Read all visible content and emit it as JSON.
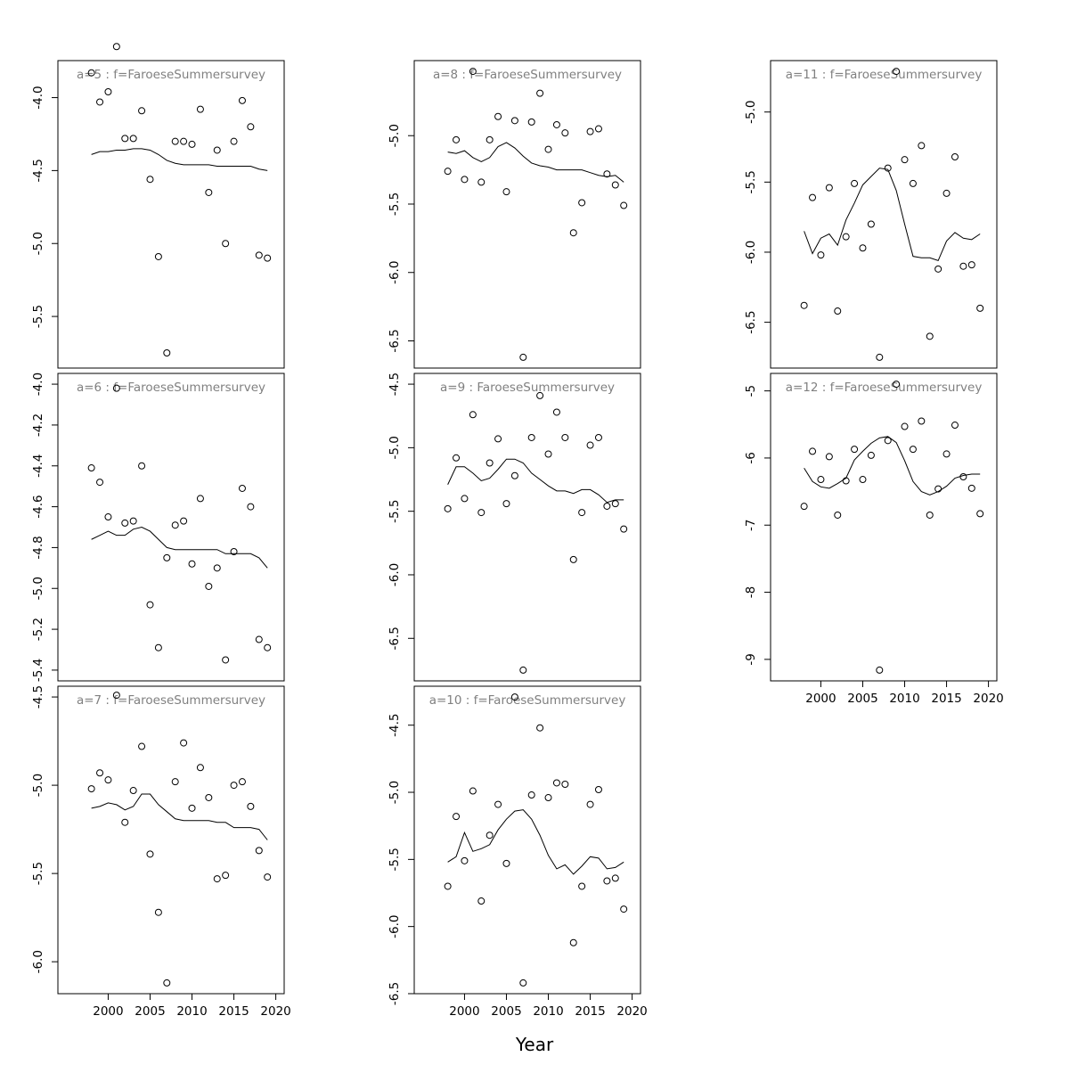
{
  "chart_data": {
    "type": "scatter",
    "xlabel": "Year",
    "x": [
      1998,
      1999,
      2000,
      2001,
      2002,
      2003,
      2004,
      2005,
      2006,
      2007,
      2008,
      2009,
      2010,
      2011,
      2012,
      2013,
      2014,
      2015,
      2016,
      2017,
      2018,
      2019
    ],
    "xlim": [
      1994,
      2021
    ],
    "xticks": [
      2000,
      2005,
      2010,
      2015,
      2020
    ],
    "line_style": "black solid line",
    "point_style": "open circles",
    "panels": [
      {
        "id": "a5",
        "title": "a=5  :  f=FaroeseSummersurvey",
        "ylim": [
          -5.78,
          -3.82
        ],
        "yticks": [
          -4.0,
          -4.5,
          -5.0,
          -5.5
        ],
        "ytick_labels": [
          "-4.0",
          "-4.5",
          "-5.0",
          "-5.5"
        ],
        "points": [
          -3.83,
          -4.03,
          -3.96,
          -3.65,
          -4.28,
          -4.28,
          -4.09,
          -4.56,
          -5.09,
          -5.75,
          -4.3,
          -4.3,
          -4.32,
          -4.08,
          -4.65,
          -4.36,
          -5.0,
          -4.3,
          -4.02,
          -4.2,
          -5.08,
          -5.1
        ],
        "fit": [
          -4.39,
          -4.37,
          -4.37,
          -4.36,
          -4.36,
          -4.35,
          -4.35,
          -4.36,
          -4.39,
          -4.43,
          -4.45,
          -4.46,
          -4.46,
          -4.46,
          -4.46,
          -4.47,
          -4.47,
          -4.47,
          -4.47,
          -4.47,
          -4.49,
          -4.5
        ]
      },
      {
        "id": "a6",
        "title": "a=6  :  f=FaroeseSummersurvey",
        "ylim": [
          -5.4,
          -4.0
        ],
        "yticks": [
          -4.0,
          -4.2,
          -4.4,
          -4.6,
          -4.8,
          -5.0,
          -5.2,
          -5.4
        ],
        "ytick_labels": [
          "-4.0",
          "-4.2",
          "-4.4",
          "-4.6",
          "-4.8",
          "-5.0",
          "-5.2",
          "-5.4"
        ],
        "points": [
          -4.41,
          -4.48,
          -4.65,
          -4.02,
          -4.68,
          -4.67,
          -4.4,
          -5.08,
          -5.29,
          -4.85,
          -4.69,
          -4.67,
          -4.88,
          -4.56,
          -4.99,
          -4.9,
          -5.35,
          -4.82,
          -4.51,
          -4.6,
          -5.25,
          -5.29
        ],
        "fit": [
          -4.76,
          -4.74,
          -4.72,
          -4.74,
          -4.74,
          -4.71,
          -4.7,
          -4.72,
          -4.76,
          -4.8,
          -4.81,
          -4.81,
          -4.81,
          -4.81,
          -4.81,
          -4.81,
          -4.83,
          -4.83,
          -4.83,
          -4.83,
          -4.85,
          -4.9
        ]
      },
      {
        "id": "a7",
        "title": "a=7  :  f=FaroeseSummersurvey",
        "ylim": [
          -6.12,
          -4.5
        ],
        "yticks": [
          -4.5,
          -5.0,
          -5.5,
          -6.0
        ],
        "ytick_labels": [
          "-4.5",
          "-5.0",
          "-5.5",
          "-6.0"
        ],
        "points": [
          -5.02,
          -4.93,
          -4.97,
          -4.49,
          -5.21,
          -5.03,
          -4.78,
          -5.39,
          -5.72,
          -6.12,
          -4.98,
          -4.76,
          -5.13,
          -4.9,
          -5.07,
          -5.53,
          -5.51,
          -5.0,
          -4.98,
          -5.12,
          -5.37,
          -5.52
        ],
        "fit": [
          -5.13,
          -5.12,
          -5.1,
          -5.11,
          -5.14,
          -5.12,
          -5.05,
          -5.05,
          -5.11,
          -5.15,
          -5.19,
          -5.2,
          -5.2,
          -5.2,
          -5.2,
          -5.21,
          -5.21,
          -5.24,
          -5.24,
          -5.24,
          -5.25,
          -5.31
        ]
      },
      {
        "id": "a8",
        "title": "a=8  :  f=FaroeseSummersurvey",
        "ylim": [
          -6.62,
          -4.53
        ],
        "yticks": [
          -5.0,
          -5.5,
          -6.0,
          -6.5
        ],
        "ytick_labels": [
          "-5.0",
          "-5.5",
          "-6.0",
          "-6.5"
        ],
        "points": [
          -5.26,
          -5.03,
          -5.32,
          -4.53,
          -5.34,
          -5.03,
          -4.86,
          -5.41,
          -4.89,
          -6.62,
          -4.9,
          -4.69,
          -5.1,
          -4.92,
          -4.98,
          -5.71,
          -5.49,
          -4.97,
          -4.95,
          -5.28,
          -5.36,
          -5.51
        ],
        "fit": [
          -5.12,
          -5.13,
          -5.11,
          -5.16,
          -5.19,
          -5.16,
          -5.08,
          -5.05,
          -5.09,
          -5.15,
          -5.2,
          -5.22,
          -5.23,
          -5.25,
          -5.25,
          -5.25,
          -5.25,
          -5.27,
          -5.29,
          -5.3,
          -5.29,
          -5.34
        ]
      },
      {
        "id": "a9",
        "title": "a=9  :  FaroeseSummersurvey",
        "ylim": [
          -6.75,
          -4.5
        ],
        "yticks": [
          -4.5,
          -5.0,
          -5.5,
          -6.0,
          -6.5
        ],
        "ytick_labels": [
          "-4.5",
          "-5.0",
          "-5.5",
          "-6.0",
          "-6.5"
        ],
        "points": [
          -5.48,
          -5.08,
          -5.4,
          -4.74,
          -5.51,
          -5.12,
          -4.93,
          -5.44,
          -5.22,
          -6.75,
          -4.92,
          -4.59,
          -5.05,
          -4.72,
          -4.92,
          -5.88,
          -5.51,
          -4.98,
          -4.92,
          -5.46,
          -5.44,
          -5.64
        ],
        "fit": [
          -5.29,
          -5.15,
          -5.15,
          -5.2,
          -5.26,
          -5.24,
          -5.17,
          -5.09,
          -5.09,
          -5.12,
          -5.2,
          -5.25,
          -5.3,
          -5.34,
          -5.34,
          -5.36,
          -5.33,
          -5.33,
          -5.37,
          -5.43,
          -5.41,
          -5.41
        ]
      },
      {
        "id": "a10",
        "title": "a=10  :  f=FaroeseSummersurvey",
        "ylim": [
          -6.42,
          -4.29
        ],
        "yticks": [
          -4.5,
          -5.0,
          -5.5,
          -6.0,
          -6.5
        ],
        "ytick_labels": [
          "-4.5",
          "-5.0",
          "-5.5",
          "-6.0",
          "-6.5"
        ],
        "points": [
          -5.7,
          -5.18,
          -5.51,
          -4.99,
          -5.81,
          -5.32,
          -5.09,
          -5.53,
          -4.29,
          -6.42,
          -5.02,
          -4.52,
          -5.04,
          -4.93,
          -4.94,
          -6.12,
          -5.7,
          -5.09,
          -4.98,
          -5.66,
          -5.64,
          -5.87
        ],
        "fit": [
          -5.52,
          -5.48,
          -5.3,
          -5.44,
          -5.42,
          -5.39,
          -5.28,
          -5.2,
          -5.14,
          -5.13,
          -5.2,
          -5.32,
          -5.47,
          -5.57,
          -5.54,
          -5.61,
          -5.55,
          -5.48,
          -5.49,
          -5.57,
          -5.56,
          -5.52
        ]
      },
      {
        "id": "a11",
        "title": "a=11  :  f=FaroeseSummersurvey",
        "ylim": [
          -6.75,
          -4.71
        ],
        "yticks": [
          -5.0,
          -5.5,
          -6.0,
          -6.5
        ],
        "ytick_labels": [
          "-5.0",
          "-5.5",
          "-6.0",
          "-6.5"
        ],
        "points": [
          -6.38,
          -5.61,
          -6.02,
          -5.54,
          -6.42,
          -5.89,
          -5.51,
          -5.97,
          -5.8,
          -6.75,
          -5.4,
          -4.71,
          -5.34,
          -5.51,
          -5.24,
          -6.6,
          -6.12,
          -5.58,
          -5.32,
          -6.1,
          -6.09,
          -6.4
        ],
        "fit": [
          -5.85,
          -6.01,
          -5.9,
          -5.87,
          -5.95,
          -5.77,
          -5.65,
          -5.52,
          -5.46,
          -5.4,
          -5.41,
          -5.56,
          -5.8,
          -6.03,
          -6.04,
          -6.04,
          -6.06,
          -5.92,
          -5.86,
          -5.9,
          -5.91,
          -5.87
        ]
      },
      {
        "id": "a12",
        "title": "a=12  :  f=FaroeseSummersurvey",
        "ylim": [
          -9.16,
          -4.9
        ],
        "yticks": [
          -5,
          -6,
          -7,
          -8,
          -9
        ],
        "ytick_labels": [
          "-5",
          "-6",
          "-7",
          "-8",
          "-9"
        ],
        "points": [
          -6.72,
          -5.9,
          -6.32,
          -5.98,
          -6.85,
          -6.34,
          -5.87,
          -6.32,
          -5.96,
          -9.16,
          -5.74,
          -4.9,
          -5.53,
          -5.87,
          -5.45,
          -6.85,
          -6.46,
          -5.94,
          -5.51,
          -6.28,
          -6.45,
          -6.83
        ],
        "fit": [
          -6.15,
          -6.35,
          -6.43,
          -6.45,
          -6.38,
          -6.3,
          -6.03,
          -5.9,
          -5.78,
          -5.7,
          -5.68,
          -5.77,
          -6.04,
          -6.35,
          -6.5,
          -6.55,
          -6.5,
          -6.42,
          -6.3,
          -6.26,
          -6.24,
          -6.24
        ]
      }
    ]
  }
}
